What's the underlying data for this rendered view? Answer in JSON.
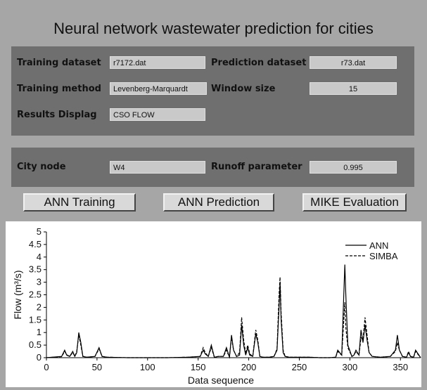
{
  "window": {
    "title": "Neural network wastewater prediction for cities"
  },
  "form": {
    "training_dataset_label": "Training dataset",
    "training_dataset_value": "r7172.dat",
    "prediction_dataset_label": "Prediction dataset",
    "prediction_dataset_value": "r73.dat",
    "training_method_label": "Training method",
    "training_method_value": "Levenberg-Marquardt",
    "window_size_label": "Window size",
    "window_size_value": "15",
    "results_display_label": "Results Displag",
    "results_display_value": "CSO FLOW",
    "city_node_label": "City node",
    "city_node_value": "W4",
    "runoff_parameter_label": "Runoff parameter",
    "runoff_parameter_value": "0.995"
  },
  "buttons": {
    "ann_training": "ANN Training",
    "ann_prediction": "ANN Prediction",
    "mike_evaluation": "MIKE Evaluation"
  },
  "colors": {
    "window_bg": "#a6a6a6",
    "panel_bg": "#6f6f6f",
    "field_bg": "#c9c9c9",
    "button_bg": "#d9d9d9"
  },
  "chart_data": {
    "type": "line",
    "xlabel": "Data sequence",
    "ylabel": "Flow (m³/s)",
    "xlim": [
      0,
      370
    ],
    "ylim": [
      0,
      5
    ],
    "xticks": [
      0,
      50,
      100,
      150,
      200,
      250,
      300,
      350
    ],
    "yticks": [
      0,
      0.5,
      1,
      1.5,
      2,
      2.5,
      3,
      3.5,
      4,
      4.5,
      5
    ],
    "legend_position": "top-right",
    "grid": false,
    "series": [
      {
        "name": "ANN",
        "style": "solid",
        "x": [
          0,
          15,
          18,
          20,
          23,
          26,
          28,
          30,
          32,
          34,
          36,
          40,
          48,
          52,
          55,
          60,
          80,
          100,
          120,
          140,
          152,
          155,
          157,
          160,
          163,
          166,
          170,
          175,
          178,
          181,
          183,
          185,
          188,
          191,
          193,
          195,
          197,
          199,
          201,
          204,
          207,
          209,
          211,
          214,
          220,
          225,
          228,
          230,
          231,
          232,
          234,
          236,
          240,
          250,
          260,
          270,
          280,
          286,
          288,
          292,
          294,
          295,
          296,
          298,
          302,
          304,
          306,
          309,
          311,
          313,
          315,
          317,
          319,
          322,
          330,
          340,
          345,
          347,
          349,
          352,
          356,
          358,
          360,
          363,
          365,
          370
        ],
        "y": [
          0,
          0.05,
          0.3,
          0.1,
          0.05,
          0.25,
          0.05,
          0.2,
          1.0,
          0.6,
          0.05,
          0.02,
          0.05,
          0.4,
          0.05,
          0.02,
          0.0,
          0.0,
          0.0,
          0.02,
          0.05,
          0.3,
          0.15,
          0.05,
          0.5,
          0.02,
          0.05,
          0.05,
          0.4,
          0.02,
          0.9,
          0.3,
          0.05,
          0.1,
          1.3,
          0.5,
          0.1,
          0.4,
          0.1,
          0.05,
          0.95,
          0.6,
          0.05,
          0.02,
          0.02,
          0.05,
          0.3,
          2.0,
          3.0,
          1.5,
          0.2,
          0.05,
          0.02,
          0.02,
          0.02,
          0.0,
          0.0,
          0.02,
          0.3,
          0.1,
          2.5,
          3.7,
          2.5,
          0.5,
          0.05,
          0.1,
          0.3,
          0.1,
          1.1,
          0.6,
          1.3,
          0.7,
          0.2,
          0.05,
          0.02,
          0.05,
          0.3,
          0.9,
          0.3,
          0.05,
          0.02,
          0.2,
          0.05,
          0.02,
          0.3,
          0.0
        ]
      },
      {
        "name": "SIMBA",
        "style": "dashed",
        "x": [
          0,
          15,
          18,
          20,
          23,
          26,
          28,
          30,
          32,
          34,
          36,
          40,
          48,
          52,
          55,
          60,
          80,
          100,
          120,
          140,
          152,
          155,
          157,
          160,
          163,
          166,
          170,
          175,
          178,
          181,
          183,
          185,
          188,
          191,
          193,
          195,
          197,
          199,
          201,
          204,
          207,
          209,
          211,
          214,
          220,
          225,
          228,
          230,
          231,
          232,
          234,
          236,
          240,
          250,
          260,
          270,
          280,
          286,
          288,
          292,
          294,
          295,
          296,
          298,
          302,
          304,
          306,
          309,
          311,
          313,
          315,
          317,
          319,
          322,
          330,
          340,
          345,
          347,
          349,
          352,
          356,
          358,
          360,
          363,
          365,
          370
        ],
        "y": [
          0,
          0.04,
          0.25,
          0.12,
          0.05,
          0.2,
          0.06,
          0.25,
          0.9,
          0.5,
          0.05,
          0.02,
          0.05,
          0.35,
          0.05,
          0.02,
          0.0,
          0.0,
          0.0,
          0.02,
          0.05,
          0.4,
          0.2,
          0.05,
          0.4,
          0.02,
          0.05,
          0.05,
          0.3,
          0.02,
          0.8,
          0.3,
          0.05,
          0.2,
          1.6,
          0.7,
          0.15,
          0.5,
          0.15,
          0.05,
          1.1,
          0.7,
          0.05,
          0.02,
          0.02,
          0.05,
          0.35,
          2.5,
          3.2,
          1.8,
          0.3,
          0.05,
          0.02,
          0.02,
          0.02,
          0.0,
          0.0,
          0.02,
          0.25,
          0.1,
          1.5,
          2.2,
          1.2,
          0.4,
          0.05,
          0.1,
          0.25,
          0.1,
          0.8,
          0.7,
          1.6,
          0.9,
          0.2,
          0.05,
          0.02,
          0.05,
          0.25,
          0.6,
          0.3,
          0.05,
          0.02,
          0.25,
          0.05,
          0.02,
          0.25,
          0.0
        ]
      }
    ]
  }
}
